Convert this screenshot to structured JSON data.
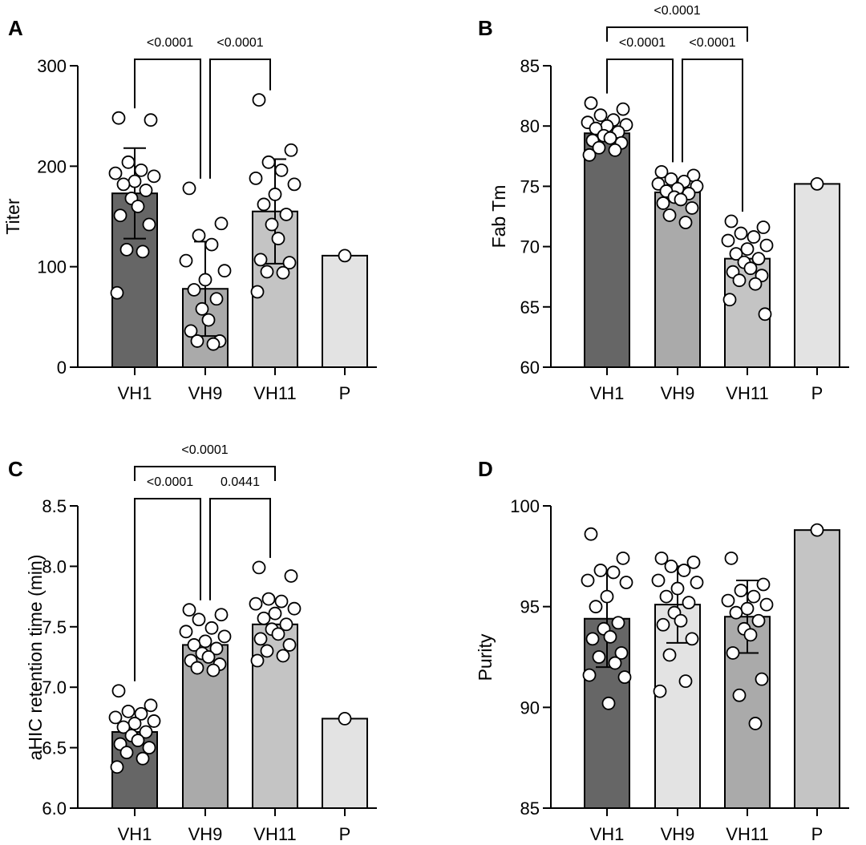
{
  "figure": {
    "panels": [
      "A",
      "B",
      "C",
      "D"
    ]
  },
  "chart_data": [
    {
      "panel": "A",
      "type": "bar",
      "xlabel": "",
      "ylabel": "Titer",
      "ylim": [
        0,
        300
      ],
      "yticks": [
        0,
        100,
        200,
        300
      ],
      "categories": [
        "VH1",
        "VH9",
        "VH11",
        "P"
      ],
      "bar_colors": [
        "#666666",
        "#aaaaaa",
        "#c4c4c4",
        "#e3e3e3"
      ],
      "values": [
        173,
        78,
        155,
        111
      ],
      "errors": [
        45,
        47,
        52,
        null
      ],
      "points": [
        [
          248,
          246,
          204,
          196,
          193,
          190,
          185,
          182,
          176,
          168,
          160,
          151,
          142,
          117,
          115,
          74
        ],
        [
          178,
          143,
          131,
          122,
          106,
          96,
          87,
          77,
          68,
          58,
          47,
          36,
          26,
          26,
          23
        ],
        [
          266,
          216,
          204,
          196,
          188,
          182,
          172,
          162,
          152,
          142,
          128,
          107,
          104,
          95,
          94,
          75
        ],
        [
          111
        ]
      ],
      "comparisons": [
        {
          "from": 0,
          "to": 1,
          "label": "<0.0001"
        },
        {
          "from": 1,
          "to": 2,
          "label": "<0.0001"
        }
      ]
    },
    {
      "panel": "B",
      "type": "bar",
      "xlabel": "",
      "ylabel": "Fab Tm",
      "ylim": [
        60,
        85
      ],
      "yticks": [
        60,
        65,
        70,
        75,
        80,
        85
      ],
      "categories": [
        "VH1",
        "VH9",
        "VH11",
        "P"
      ],
      "bar_colors": [
        "#666666",
        "#aaaaaa",
        "#c4c4c4",
        "#e3e3e3"
      ],
      "values": [
        79.4,
        74.5,
        69.0,
        75.2
      ],
      "errors": [
        null,
        null,
        null,
        null
      ],
      "points": [
        [
          81.9,
          81.4,
          80.9,
          80.5,
          80.3,
          80.1,
          80.0,
          79.8,
          79.5,
          79.2,
          79.0,
          78.8,
          78.6,
          78.2,
          78.0,
          77.6
        ],
        [
          76.2,
          75.9,
          75.6,
          75.4,
          75.2,
          75.0,
          74.8,
          74.6,
          74.4,
          74.1,
          73.9,
          73.6,
          73.2,
          72.6,
          72.0
        ],
        [
          72.1,
          71.6,
          71.1,
          70.8,
          70.5,
          70.1,
          69.8,
          69.4,
          69.0,
          68.7,
          68.2,
          67.9,
          67.6,
          67.2,
          66.9,
          65.6,
          64.4
        ],
        [
          75.2
        ]
      ],
      "comparisons": [
        {
          "from": 0,
          "to": 1,
          "label": "<0.0001"
        },
        {
          "from": 1,
          "to": 2,
          "label": "<0.0001"
        },
        {
          "from": 0,
          "to": 2,
          "label": "<0.0001"
        }
      ]
    },
    {
      "panel": "C",
      "type": "bar",
      "xlabel": "",
      "ylabel": "aHIC retention time (min)",
      "ylim": [
        6.0,
        8.5
      ],
      "yticks": [
        6.0,
        6.5,
        7.0,
        7.5,
        8.0,
        8.5
      ],
      "categories": [
        "VH1",
        "VH9",
        "VH11",
        "P"
      ],
      "bar_colors": [
        "#666666",
        "#aaaaaa",
        "#c4c4c4",
        "#e3e3e3"
      ],
      "values": [
        6.63,
        7.35,
        7.52,
        6.74
      ],
      "errors": [
        null,
        null,
        null,
        null
      ],
      "points": [
        [
          6.97,
          6.85,
          6.8,
          6.78,
          6.75,
          6.72,
          6.7,
          6.67,
          6.63,
          6.6,
          6.56,
          6.53,
          6.5,
          6.46,
          6.41,
          6.34
        ],
        [
          7.64,
          7.6,
          7.56,
          7.49,
          7.46,
          7.42,
          7.38,
          7.35,
          7.32,
          7.28,
          7.25,
          7.22,
          7.19,
          7.16,
          7.14
        ],
        [
          7.99,
          7.92,
          7.73,
          7.71,
          7.69,
          7.65,
          7.61,
          7.57,
          7.52,
          7.48,
          7.44,
          7.4,
          7.35,
          7.3,
          7.26,
          7.22
        ],
        [
          6.74
        ]
      ],
      "comparisons": [
        {
          "from": 0,
          "to": 1,
          "label": "<0.0001"
        },
        {
          "from": 1,
          "to": 2,
          "label": "0.0441"
        },
        {
          "from": 0,
          "to": 2,
          "label": "<0.0001"
        }
      ]
    },
    {
      "panel": "D",
      "type": "bar",
      "xlabel": "",
      "ylabel": "Purity",
      "ylim": [
        85,
        100
      ],
      "yticks": [
        85,
        90,
        95,
        100
      ],
      "categories": [
        "VH1",
        "VH9",
        "VH11",
        "P"
      ],
      "bar_colors": [
        "#666666",
        "#e3e3e3",
        "#aaaaaa",
        "#c4c4c4"
      ],
      "values": [
        94.4,
        95.1,
        94.5,
        98.8
      ],
      "errors": [
        2.4,
        1.9,
        1.8,
        null
      ],
      "points": [
        [
          98.6,
          97.4,
          96.8,
          96.7,
          96.3,
          96.2,
          95.5,
          95.0,
          94.2,
          93.9,
          93.5,
          93.4,
          92.7,
          92.5,
          92.2,
          91.6,
          91.5,
          90.2
        ],
        [
          97.4,
          97.2,
          97.0,
          96.8,
          96.3,
          96.2,
          95.9,
          95.5,
          95.2,
          94.7,
          94.3,
          94.1,
          93.4,
          92.6,
          91.3,
          90.8
        ],
        [
          97.4,
          96.1,
          95.8,
          95.5,
          95.3,
          95.1,
          94.9,
          94.7,
          94.3,
          93.9,
          93.6,
          92.7,
          91.4,
          90.6,
          89.2
        ],
        [
          98.8
        ]
      ],
      "comparisons": []
    }
  ]
}
